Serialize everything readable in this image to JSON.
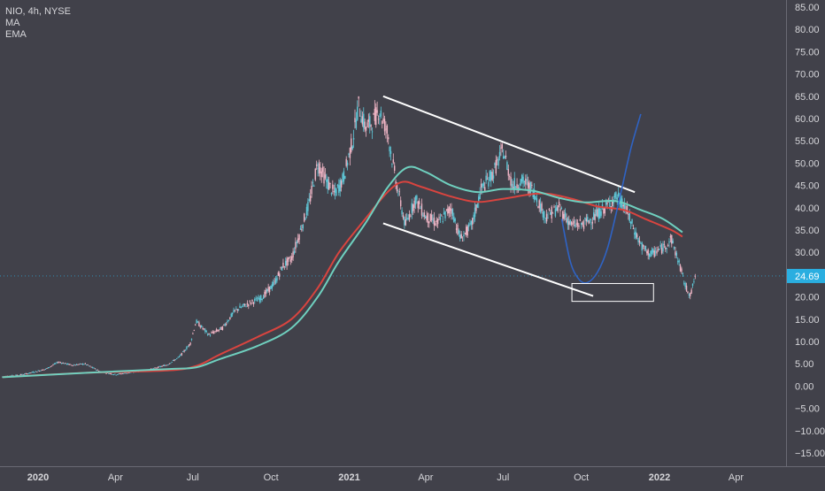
{
  "header": {
    "symbol_line": "NIO, 4h, NYSE",
    "indicator_1": "MA",
    "indicator_2": "EMA"
  },
  "colors": {
    "background": "#41414a",
    "axis_text": "#d6d6da",
    "grid": "#4b4b55",
    "candle_up": "#5fc8d8",
    "candle_down": "#eeb4c4",
    "ma": "#d9443f",
    "ema": "#6fd0bf",
    "trendline": "#ffffff",
    "cup_curve": "#2f63c4",
    "last_price_badge": "#2aaee0"
  },
  "chart_data": {
    "type": "line",
    "title": "NIO, 4h, NYSE",
    "xlabel": "",
    "ylabel": "",
    "x_ticks": [
      "2020",
      "Apr",
      "Jul",
      "Oct",
      "2021",
      "Apr",
      "Jul",
      "Oct",
      "2022",
      "Apr"
    ],
    "y_ticks": [
      85,
      80,
      75,
      70,
      65,
      60,
      55,
      50,
      45,
      40,
      35,
      30,
      25,
      20,
      15,
      10,
      5,
      0,
      -5,
      -10,
      -15
    ],
    "y_tick_labels": [
      "85.00",
      "80.00",
      "75.00",
      "70.00",
      "65.00",
      "60.00",
      "55.00",
      "50.00",
      "45.00",
      "40.00",
      "35.00",
      "30.00",
      "25.00",
      "20.00",
      "15.00",
      "10.00",
      "5.00",
      "0.00",
      "−5.00",
      "−10.00",
      "−15.00"
    ],
    "ylim": [
      -17,
      87
    ],
    "xlim": [
      "2019-11-20",
      "2022-05-15"
    ],
    "grid": false,
    "last_price": 24.69,
    "last_price_label": "24.69",
    "price_path": [
      [
        "2019-11-20",
        2.1
      ],
      [
        "2019-12-15",
        2.6
      ],
      [
        "2020-01-10",
        3.8
      ],
      [
        "2020-01-25",
        5.4
      ],
      [
        "2020-02-10",
        4.7
      ],
      [
        "2020-02-25",
        5.0
      ],
      [
        "2020-03-15",
        3.2
      ],
      [
        "2020-04-01",
        2.6
      ],
      [
        "2020-04-20",
        3.1
      ],
      [
        "2020-05-10",
        3.6
      ],
      [
        "2020-06-01",
        4.8
      ],
      [
        "2020-06-15",
        6.5
      ],
      [
        "2020-06-28",
        9.5
      ],
      [
        "2020-07-05",
        14.5
      ],
      [
        "2020-07-20",
        11.5
      ],
      [
        "2020-08-05",
        13.0
      ],
      [
        "2020-08-20",
        17.0
      ],
      [
        "2020-09-05",
        18.5
      ],
      [
        "2020-09-20",
        19.8
      ],
      [
        "2020-10-05",
        23.0
      ],
      [
        "2020-10-15",
        27.0
      ],
      [
        "2020-10-25",
        28.5
      ],
      [
        "2020-11-05",
        35.0
      ],
      [
        "2020-11-15",
        41.0
      ],
      [
        "2020-11-25",
        50.0
      ],
      [
        "2020-12-05",
        46.0
      ],
      [
        "2020-12-15",
        43.0
      ],
      [
        "2020-12-25",
        46.5
      ],
      [
        "2021-01-05",
        55.0
      ],
      [
        "2021-01-12",
        63.0
      ],
      [
        "2021-01-20",
        58.0
      ],
      [
        "2021-01-28",
        59.0
      ],
      [
        "2021-02-05",
        62.0
      ],
      [
        "2021-02-15",
        57.0
      ],
      [
        "2021-02-25",
        46.0
      ],
      [
        "2021-03-08",
        36.0
      ],
      [
        "2021-03-20",
        42.0
      ],
      [
        "2021-04-01",
        38.0
      ],
      [
        "2021-04-15",
        36.5
      ],
      [
        "2021-05-01",
        40.0
      ],
      [
        "2021-05-12",
        33.0
      ],
      [
        "2021-05-25",
        36.0
      ],
      [
        "2021-06-05",
        44.0
      ],
      [
        "2021-06-20",
        48.0
      ],
      [
        "2021-07-01",
        53.0
      ],
      [
        "2021-07-12",
        45.0
      ],
      [
        "2021-07-25",
        46.0
      ],
      [
        "2021-08-05",
        44.0
      ],
      [
        "2021-08-20",
        38.0
      ],
      [
        "2021-09-05",
        40.0
      ],
      [
        "2021-09-20",
        36.0
      ],
      [
        "2021-10-05",
        36.5
      ],
      [
        "2021-10-20",
        38.5
      ],
      [
        "2021-11-01",
        40.5
      ],
      [
        "2021-11-12",
        42.5
      ],
      [
        "2021-11-22",
        40.0
      ],
      [
        "2021-12-02",
        35.0
      ],
      [
        "2021-12-12",
        31.0
      ],
      [
        "2021-12-22",
        29.5
      ],
      [
        "2022-01-05",
        31.0
      ],
      [
        "2022-01-15",
        33.0
      ],
      [
        "2022-01-25",
        27.0
      ],
      [
        "2022-02-01",
        22.0
      ],
      [
        "2022-02-07",
        20.5
      ],
      [
        "2022-02-12",
        24.69
      ]
    ],
    "series": [
      {
        "name": "MA",
        "points": [
          [
            "2019-11-20",
            2.0
          ],
          [
            "2020-03-01",
            3.0
          ],
          [
            "2020-06-01",
            3.5
          ],
          [
            "2020-07-05",
            4.5
          ],
          [
            "2020-08-01",
            7.0
          ],
          [
            "2020-09-15",
            11.0
          ],
          [
            "2020-10-25",
            15.0
          ],
          [
            "2020-11-25",
            22.0
          ],
          [
            "2020-12-20",
            30.0
          ],
          [
            "2021-01-20",
            37.5
          ],
          [
            "2021-02-15",
            43.5
          ],
          [
            "2021-03-05",
            45.8
          ],
          [
            "2021-03-25",
            44.8
          ],
          [
            "2021-05-01",
            42.5
          ],
          [
            "2021-06-01",
            41.3
          ],
          [
            "2021-07-01",
            42.0
          ],
          [
            "2021-08-15",
            43.2
          ],
          [
            "2021-09-20",
            42.0
          ],
          [
            "2021-10-20",
            40.3
          ],
          [
            "2021-11-20",
            39.5
          ],
          [
            "2021-12-15",
            37.5
          ],
          [
            "2022-01-15",
            35.0
          ],
          [
            "2022-01-28",
            33.5
          ]
        ]
      },
      {
        "name": "EMA",
        "points": [
          [
            "2019-11-20",
            2.0
          ],
          [
            "2020-03-01",
            3.0
          ],
          [
            "2020-06-01",
            3.8
          ],
          [
            "2020-07-05",
            4.2
          ],
          [
            "2020-08-01",
            6.0
          ],
          [
            "2020-09-15",
            9.0
          ],
          [
            "2020-10-25",
            13.0
          ],
          [
            "2020-11-25",
            20.0
          ],
          [
            "2020-12-20",
            28.0
          ],
          [
            "2021-01-20",
            36.5
          ],
          [
            "2021-02-15",
            44.5
          ],
          [
            "2021-03-10",
            49.0
          ],
          [
            "2021-04-01",
            48.0
          ],
          [
            "2021-05-01",
            45.0
          ],
          [
            "2021-06-01",
            43.5
          ],
          [
            "2021-07-01",
            44.2
          ],
          [
            "2021-08-05",
            43.8
          ],
          [
            "2021-09-05",
            42.2
          ],
          [
            "2021-10-05",
            41.2
          ],
          [
            "2021-11-10",
            41.5
          ],
          [
            "2021-12-10",
            39.5
          ],
          [
            "2022-01-05",
            37.5
          ],
          [
            "2022-01-28",
            34.5
          ]
        ]
      }
    ],
    "annotations": {
      "upper_trendline": [
        [
          "2021-02-10",
          65.0
        ],
        [
          "2021-12-03",
          43.5
        ]
      ],
      "lower_trendline": [
        [
          "2021-02-10",
          36.5
        ],
        [
          "2021-10-15",
          20.2
        ]
      ],
      "cup_curve": [
        [
          "2021-09-08",
          37.5
        ],
        [
          "2021-09-18",
          28.0
        ],
        [
          "2021-09-28",
          24.0
        ],
        [
          "2021-10-08",
          23.2
        ],
        [
          "2021-10-20",
          25.5
        ],
        [
          "2021-11-01",
          31.0
        ],
        [
          "2021-11-15",
          42.0
        ],
        [
          "2021-11-28",
          53.0
        ],
        [
          "2021-12-10",
          61.0
        ]
      ],
      "target_box": {
        "x": [
          "2021-09-20",
          "2021-12-25"
        ],
        "y": [
          19.0,
          23.0
        ]
      }
    }
  }
}
